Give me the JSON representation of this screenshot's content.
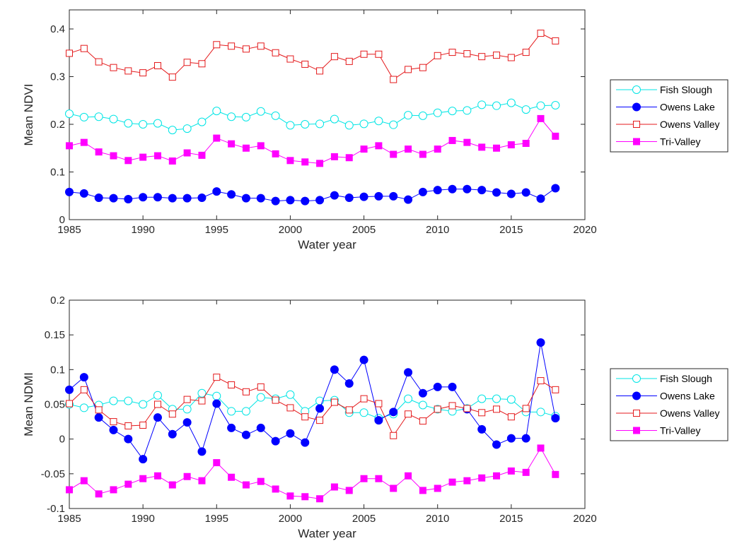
{
  "chart_data": [
    {
      "type": "line",
      "title": "",
      "xlabel": "Water year",
      "ylabel": "Mean NDVI",
      "xlim": [
        1985,
        2020
      ],
      "ylim": [
        0,
        0.44
      ],
      "xticks": [
        1985,
        1990,
        1995,
        2000,
        2005,
        2010,
        2015,
        2020
      ],
      "yticks": [
        0,
        0.1,
        0.2,
        0.3,
        0.4
      ],
      "xtick_labels": [
        "1985",
        "1990",
        "1995",
        "2000",
        "2005",
        "2010",
        "2015",
        "2020"
      ],
      "ytick_labels": [
        "0",
        "0.1",
        "0.2",
        "0.3",
        "0.4"
      ],
      "grid": false,
      "legend_position": "right",
      "x": [
        1985,
        1986,
        1987,
        1988,
        1989,
        1990,
        1991,
        1992,
        1993,
        1994,
        1995,
        1996,
        1997,
        1998,
        1999,
        2000,
        2001,
        2002,
        2003,
        2004,
        2005,
        2006,
        2007,
        2008,
        2009,
        2010,
        2011,
        2012,
        2013,
        2014,
        2015,
        2016,
        2017,
        2018
      ],
      "series": [
        {
          "name": "Fish Slough",
          "color": "#00e5e5",
          "marker": "circle-open",
          "values": [
            0.222,
            0.215,
            0.216,
            0.211,
            0.202,
            0.2,
            0.202,
            0.188,
            0.191,
            0.205,
            0.228,
            0.216,
            0.215,
            0.227,
            0.218,
            0.198,
            0.2,
            0.201,
            0.211,
            0.198,
            0.201,
            0.207,
            0.199,
            0.219,
            0.218,
            0.224,
            0.228,
            0.229,
            0.241,
            0.239,
            0.245,
            0.231,
            0.239,
            0.24
          ]
        },
        {
          "name": "Owens Lake",
          "color": "#0000ff",
          "marker": "circle-filled",
          "values": [
            0.058,
            0.055,
            0.046,
            0.045,
            0.043,
            0.047,
            0.047,
            0.045,
            0.045,
            0.046,
            0.059,
            0.053,
            0.045,
            0.045,
            0.039,
            0.041,
            0.039,
            0.041,
            0.051,
            0.046,
            0.048,
            0.049,
            0.049,
            0.042,
            0.058,
            0.062,
            0.064,
            0.064,
            0.062,
            0.057,
            0.054,
            0.057,
            0.044,
            0.066
          ]
        },
        {
          "name": "Owens Valley",
          "color": "#e41a1c",
          "marker": "square-open",
          "values": [
            0.349,
            0.359,
            0.331,
            0.319,
            0.312,
            0.308,
            0.323,
            0.299,
            0.33,
            0.327,
            0.367,
            0.364,
            0.358,
            0.364,
            0.35,
            0.337,
            0.326,
            0.312,
            0.342,
            0.332,
            0.347,
            0.347,
            0.294,
            0.315,
            0.319,
            0.344,
            0.351,
            0.348,
            0.342,
            0.345,
            0.34,
            0.351,
            0.391,
            0.375
          ]
        },
        {
          "name": "Tri-Valley",
          "color": "#ff00ff",
          "marker": "square-filled",
          "values": [
            0.155,
            0.162,
            0.142,
            0.134,
            0.124,
            0.131,
            0.134,
            0.123,
            0.14,
            0.135,
            0.171,
            0.159,
            0.15,
            0.155,
            0.138,
            0.124,
            0.121,
            0.118,
            0.132,
            0.13,
            0.148,
            0.155,
            0.137,
            0.148,
            0.137,
            0.148,
            0.166,
            0.162,
            0.152,
            0.15,
            0.157,
            0.16,
            0.212,
            0.175
          ]
        }
      ]
    },
    {
      "type": "line",
      "title": "",
      "xlabel": "Water year",
      "ylabel": "Mean NDMI",
      "xlim": [
        1985,
        2020
      ],
      "ylim": [
        -0.1,
        0.2
      ],
      "xticks": [
        1985,
        1990,
        1995,
        2000,
        2005,
        2010,
        2015,
        2020
      ],
      "yticks": [
        -0.1,
        -0.05,
        0,
        0.05,
        0.1,
        0.15,
        0.2
      ],
      "xtick_labels": [
        "1985",
        "1990",
        "1995",
        "2000",
        "2005",
        "2010",
        "2015",
        "2020"
      ],
      "ytick_labels": [
        "-0.1",
        "-0.05",
        "0",
        "0.05",
        "0.1",
        "0.15",
        "0.2"
      ],
      "grid": false,
      "legend_position": "right",
      "x": [
        1985,
        1986,
        1987,
        1988,
        1989,
        1990,
        1991,
        1992,
        1993,
        1994,
        1995,
        1996,
        1997,
        1998,
        1999,
        2000,
        2001,
        2002,
        2003,
        2004,
        2005,
        2006,
        2007,
        2008,
        2009,
        2010,
        2011,
        2012,
        2013,
        2014,
        2015,
        2016,
        2017,
        2018
      ],
      "series": [
        {
          "name": "Fish Slough",
          "color": "#00e5e5",
          "marker": "circle-open",
          "values": [
            0.05,
            0.045,
            0.049,
            0.055,
            0.055,
            0.05,
            0.063,
            0.043,
            0.043,
            0.066,
            0.062,
            0.04,
            0.04,
            0.06,
            0.058,
            0.064,
            0.04,
            0.055,
            0.056,
            0.038,
            0.038,
            0.03,
            0.036,
            0.058,
            0.049,
            0.043,
            0.04,
            0.044,
            0.058,
            0.058,
            0.057,
            0.039,
            0.039,
            0.033
          ]
        },
        {
          "name": "Owens Lake",
          "color": "#0000ff",
          "marker": "circle-filled",
          "values": [
            0.071,
            0.089,
            0.031,
            0.013,
            0.0,
            -0.029,
            0.031,
            0.007,
            0.024,
            -0.018,
            0.051,
            0.016,
            0.006,
            0.016,
            -0.003,
            0.008,
            -0.005,
            0.044,
            0.1,
            0.08,
            0.114,
            0.027,
            0.039,
            0.096,
            0.066,
            0.075,
            0.075,
            0.043,
            0.014,
            -0.008,
            0.001,
            0.001,
            0.139,
            0.03
          ]
        },
        {
          "name": "Owens Valley",
          "color": "#e41a1c",
          "marker": "square-open",
          "values": [
            0.051,
            0.071,
            0.042,
            0.025,
            0.019,
            0.02,
            0.05,
            0.036,
            0.057,
            0.055,
            0.089,
            0.078,
            0.068,
            0.075,
            0.056,
            0.045,
            0.032,
            0.027,
            0.053,
            0.042,
            0.058,
            0.051,
            0.005,
            0.036,
            0.026,
            0.043,
            0.048,
            0.044,
            0.038,
            0.043,
            0.032,
            0.044,
            0.084,
            0.071
          ]
        },
        {
          "name": "Tri-Valley",
          "color": "#ff00ff",
          "marker": "square-filled",
          "values": [
            -0.073,
            -0.06,
            -0.079,
            -0.073,
            -0.065,
            -0.057,
            -0.053,
            -0.066,
            -0.054,
            -0.06,
            -0.034,
            -0.055,
            -0.066,
            -0.061,
            -0.072,
            -0.082,
            -0.083,
            -0.086,
            -0.069,
            -0.074,
            -0.057,
            -0.057,
            -0.071,
            -0.053,
            -0.074,
            -0.071,
            -0.062,
            -0.06,
            -0.056,
            -0.053,
            -0.046,
            -0.048,
            -0.013,
            -0.051
          ]
        }
      ]
    }
  ]
}
